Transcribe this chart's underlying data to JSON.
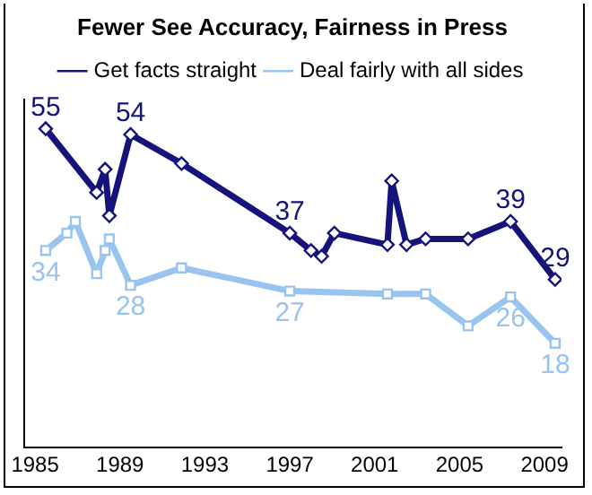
{
  "chart_data": {
    "type": "line",
    "title": "Fewer See Accuracy, Fairness in Press",
    "xlim": [
      1984.5,
      2009.8
    ],
    "xticks": [
      1985,
      1989,
      1993,
      1997,
      2001,
      2005,
      2009
    ],
    "ylim": [
      0,
      60
    ],
    "tick_labels": "x",
    "grid": false,
    "legend": "top",
    "series": [
      {
        "name": "Get facts straight",
        "color": "#14147a",
        "marker": "diamond",
        "x": [
          1985.5,
          1987.9,
          1988.3,
          1988.5,
          1989.5,
          1991.9,
          1997.0,
          1998.0,
          1998.5,
          1999.1,
          2001.6,
          2001.8,
          2002.5,
          2003.4,
          2005.4,
          2007.4,
          2009.5
        ],
        "values": [
          55,
          44,
          48,
          40,
          54,
          49,
          37,
          34,
          33,
          37,
          35,
          46,
          35,
          36,
          36,
          39,
          29
        ],
        "value_labels": [
          "55",
          null,
          null,
          null,
          "54",
          null,
          "37",
          null,
          null,
          null,
          null,
          null,
          null,
          null,
          null,
          "39",
          "29"
        ]
      },
      {
        "name": "Deal fairly with all sides",
        "color": "#99c4f0",
        "marker": "square",
        "x": [
          1985.5,
          1986.5,
          1986.9,
          1987.9,
          1988.3,
          1988.5,
          1989.5,
          1991.9,
          1997.0,
          2001.6,
          2003.4,
          2005.4,
          2007.4,
          2009.5
        ],
        "values": [
          34,
          37,
          39,
          30,
          34,
          36,
          28,
          31,
          27,
          26.5,
          26.5,
          21,
          26,
          18
        ],
        "value_labels": [
          "34",
          null,
          null,
          null,
          null,
          null,
          "28",
          null,
          "27",
          null,
          null,
          null,
          "26",
          "18"
        ]
      }
    ]
  }
}
